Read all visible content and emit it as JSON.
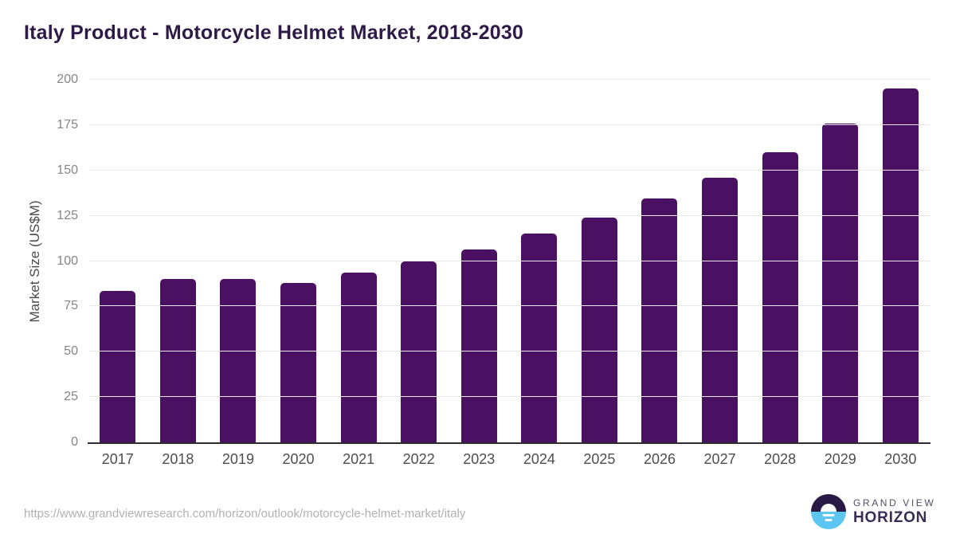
{
  "title": "Italy Product - Motorcycle Helmet Market, 2018-2030",
  "chart_data": {
    "type": "bar",
    "categories": [
      "2017",
      "2018",
      "2019",
      "2020",
      "2021",
      "2022",
      "2023",
      "2024",
      "2025",
      "2026",
      "2027",
      "2028",
      "2029",
      "2030"
    ],
    "values": [
      83.5,
      90,
      90,
      88,
      93.5,
      100,
      106.5,
      115,
      124,
      134.5,
      146,
      160,
      176,
      195
    ],
    "title": "Italy Product - Motorcycle Helmet Market, 2018-2030",
    "xlabel": "",
    "ylabel": "Market Size (US$M)",
    "ylim": [
      0,
      200
    ],
    "yticks": [
      0,
      25,
      50,
      75,
      100,
      125,
      150,
      175,
      200
    ],
    "grid": true,
    "legend": "none",
    "bar_color": "#4A1061"
  },
  "footer": {
    "source_url": "https://www.grandviewresearch.com/horizon/outlook/motorcycle-helmet-market/italy",
    "brand_top": "GRAND VIEW",
    "brand_bottom": "HORIZON"
  },
  "colors": {
    "bar": "#4A1061",
    "title_text": "#2E1A47",
    "gridline": "#e9e9ec",
    "axis_line": "#2e2e2e",
    "y_tick_text": "#85858a",
    "x_tick_text": "#4d4d52",
    "source_text": "#b1b1b1",
    "logo_dark": "#281A45",
    "logo_blue": "#5CC6F0"
  }
}
